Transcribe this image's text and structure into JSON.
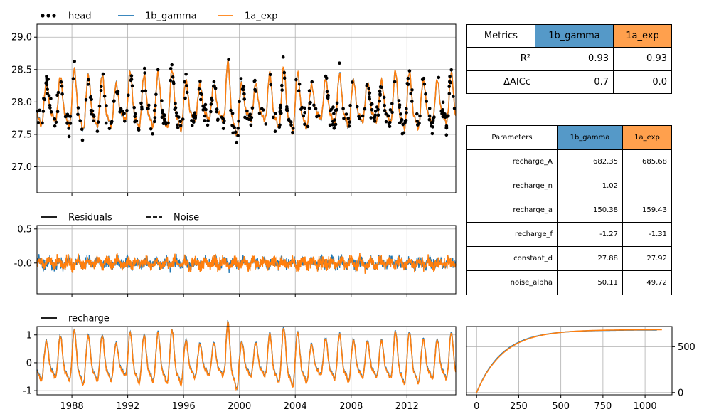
{
  "colors": {
    "head": "#000000",
    "gamma": "#1f77b4",
    "exp": "#ff7f0e",
    "gamma_header": "#5599c8",
    "exp_header": "#ffa04d",
    "grid": "#b0b0b0"
  },
  "chart_data": [
    {
      "type": "line",
      "panel": "head",
      "ylim": [
        26.6,
        29.2
      ],
      "xlim": [
        1985.5,
        2015.5
      ],
      "yticks": [
        "27.0",
        "27.5",
        "28.0",
        "28.5",
        "29.0"
      ],
      "legend": {
        "placement": "top-left",
        "items": [
          {
            "name": "head",
            "style": "dots"
          },
          {
            "name": "1b_gamma",
            "style": "line"
          },
          {
            "name": "1a_exp",
            "style": "line"
          }
        ]
      },
      "series": [
        {
          "name": "1b_gamma",
          "mean": 27.95,
          "amplitude": 0.5
        },
        {
          "name": "1a_exp",
          "mean": 27.95,
          "amplitude": 0.5
        }
      ],
      "grid": true
    },
    {
      "type": "line",
      "panel": "residuals",
      "ylim": [
        -0.45,
        0.55
      ],
      "xlim": [
        1985.5,
        2015.5
      ],
      "yticks": [
        "-0.0",
        "0.5"
      ],
      "yticks_values": [
        0,
        0.5
      ],
      "legend": {
        "placement": "top-left",
        "items": [
          {
            "name": "Residuals",
            "style": "solid"
          },
          {
            "name": "Noise",
            "style": "dashed"
          }
        ]
      },
      "grid": true
    },
    {
      "type": "line",
      "panel": "recharge",
      "ylim": [
        -1.15,
        1.3
      ],
      "xlim": [
        1985.5,
        2015.5
      ],
      "yticks": [
        "-1",
        "0",
        "1"
      ],
      "yticks_values": [
        -1,
        0,
        1
      ],
      "xticks": [
        "1988",
        "1992",
        "1996",
        "2000",
        "2004",
        "2008",
        "2012"
      ],
      "xticks_values": [
        1988,
        1992,
        1996,
        2000,
        2004,
        2008,
        2012
      ],
      "legend": {
        "placement": "top-left",
        "items": [
          {
            "name": "recharge",
            "style": "solid"
          }
        ]
      },
      "grid": true
    },
    {
      "type": "line",
      "panel": "step-response",
      "xlim": [
        -60,
        1160
      ],
      "ylim": [
        -25,
        720
      ],
      "xticks": [
        "0",
        "250",
        "500",
        "750",
        "1000"
      ],
      "xticks_values": [
        0,
        250,
        500,
        750,
        1000
      ],
      "yticks": [
        "0",
        "500"
      ],
      "yticks_values": [
        0,
        500
      ],
      "series": [
        {
          "name": "1b_gamma",
          "gain": 682.35,
          "n": 1.02,
          "a": 150.38,
          "tmax": 1070
        },
        {
          "name": "1a_exp",
          "gain": 685.68,
          "a": 159.43,
          "tmax": 1100
        }
      ],
      "grid": true
    },
    {
      "type": "table",
      "panel": "metrics",
      "header": [
        "Metrics",
        "1b_gamma",
        "1a_exp"
      ],
      "rows": [
        [
          "R²",
          "0.93",
          "0.93"
        ],
        [
          "ΔAICc",
          "0.7",
          "0.0"
        ]
      ]
    },
    {
      "type": "table",
      "panel": "parameters",
      "header": [
        "Parameters",
        "1b_gamma",
        "1a_exp"
      ],
      "rows": [
        [
          "recharge_A",
          "682.35",
          "685.68"
        ],
        [
          "recharge_n",
          "1.02",
          ""
        ],
        [
          "recharge_a",
          "150.38",
          "159.43"
        ],
        [
          "recharge_f",
          "-1.27",
          "-1.31"
        ],
        [
          "constant_d",
          "27.88",
          "27.92"
        ],
        [
          "noise_alpha",
          "50.11",
          "49.72"
        ]
      ]
    }
  ]
}
